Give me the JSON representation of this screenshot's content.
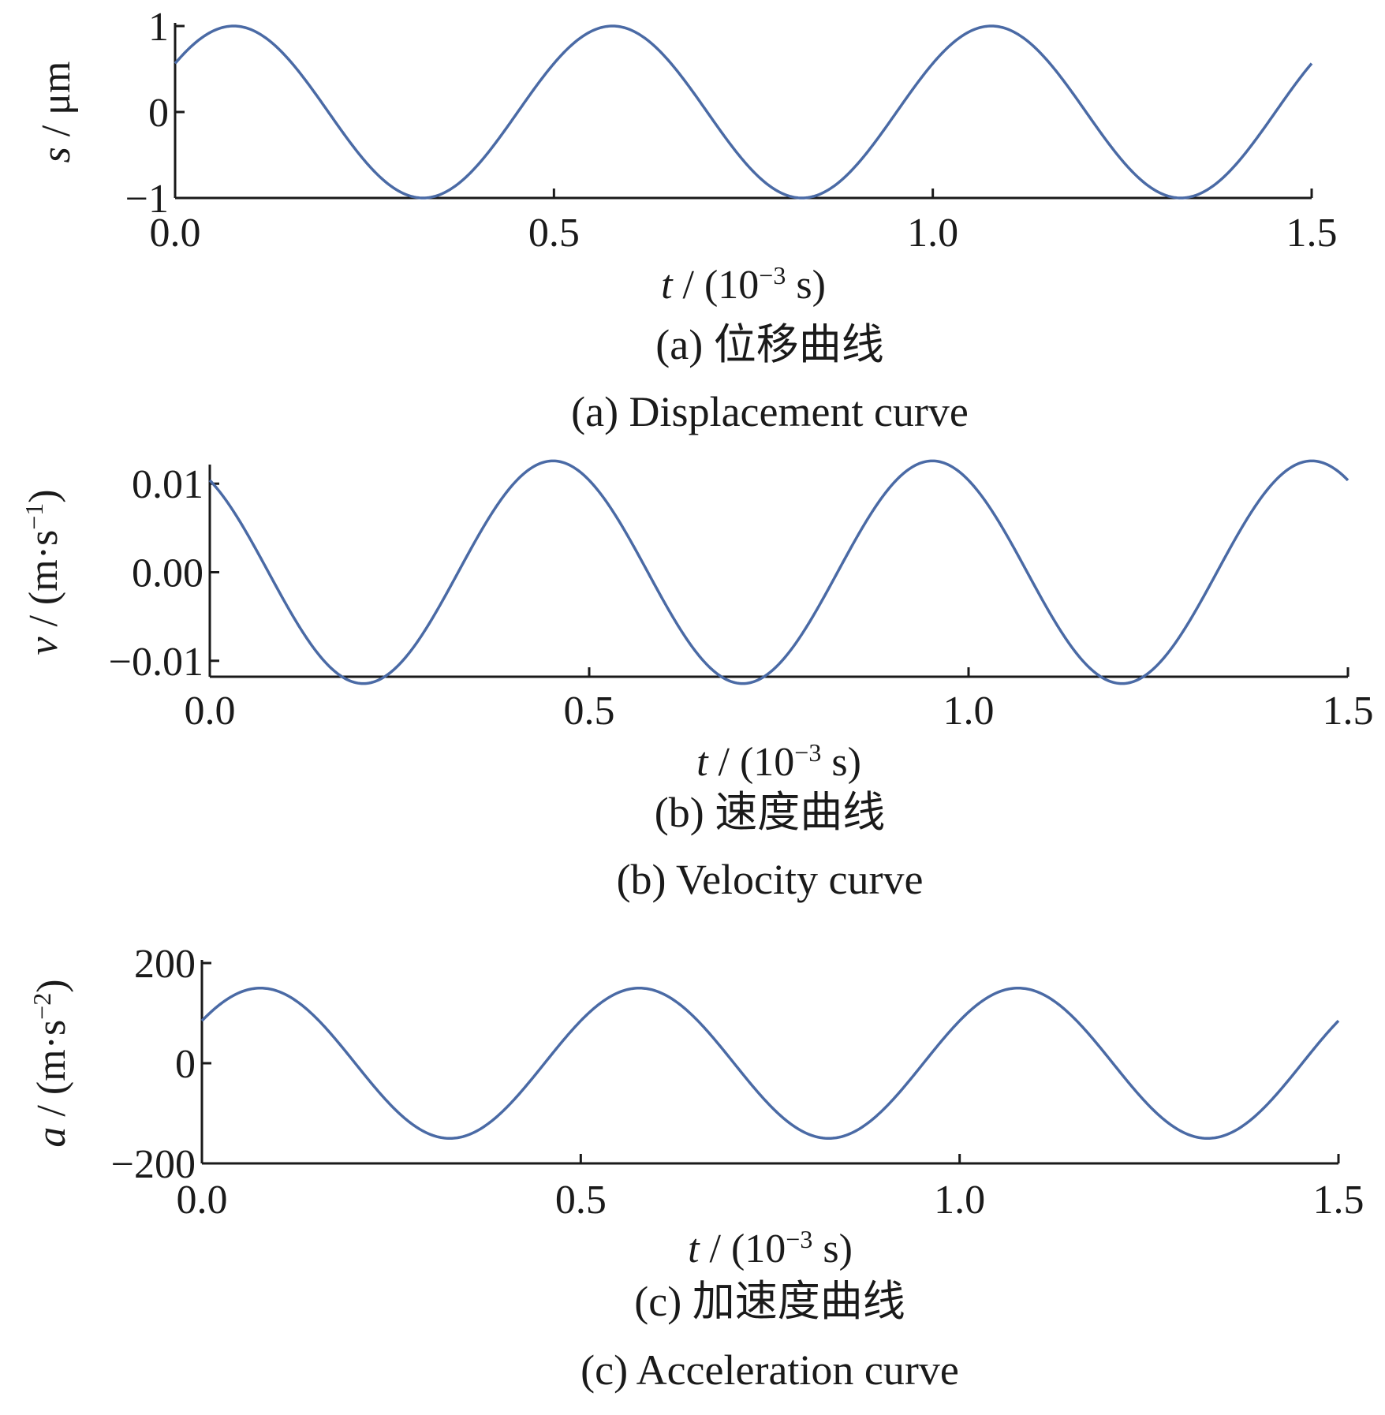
{
  "chart_data": [
    {
      "type": "line",
      "caption_cn": "(a) 位移曲线",
      "caption_en": "(a) Displacement curve",
      "ylabel_var": "s",
      "ylabel_unit": " / μm",
      "xlabel_var": "t",
      "xlabel_unit_pre": " / (10",
      "xlabel_unit_sup": "−3",
      "xlabel_unit_post": " s)",
      "xlim": [
        0,
        1.5
      ],
      "ylim": [
        -1,
        1
      ],
      "xticks": [
        0.0,
        0.5,
        1.0,
        1.5
      ],
      "xtick_labels": [
        "0.0",
        "0.5",
        "1.0",
        "1.5"
      ],
      "yticks": [
        -1,
        0,
        1
      ],
      "ytick_labels": [
        "−1",
        "0",
        "1"
      ],
      "grid": false,
      "series": [
        {
          "frequency_khz": 2,
          "amplitude": 1,
          "phase_rad": 0.6,
          "color": "#4a6aa5"
        }
      ]
    },
    {
      "type": "line",
      "caption_cn": "(b) 速度曲线",
      "caption_en": "(b) Velocity curve",
      "ylabel_var": "v",
      "ylabel_unit_pre": " / (m·s",
      "ylabel_unit_sup": "−1",
      "ylabel_unit_post": ")",
      "xlabel_var": "t",
      "xlabel_unit_pre": " / (10",
      "xlabel_unit_sup": "−3",
      "xlabel_unit_post": " s)",
      "xlim": [
        0,
        1.5
      ],
      "ylim": [
        -0.0118,
        0.0118
      ],
      "xticks": [
        0.0,
        0.5,
        1.0,
        1.5
      ],
      "xtick_labels": [
        "0.0",
        "0.5",
        "1.0",
        "1.5"
      ],
      "yticks": [
        -0.01,
        0.0,
        0.01
      ],
      "ytick_labels": [
        "−0.01",
        "0.00",
        "0.01"
      ],
      "grid": false,
      "series": [
        {
          "frequency_khz": 2,
          "amplitude": 0.01257,
          "phase_rad": 2.17,
          "color": "#4a6aa5"
        }
      ]
    },
    {
      "type": "line",
      "caption_cn": "(c) 加速度曲线",
      "caption_en": "(c) Acceleration curve",
      "ylabel_var": "a",
      "ylabel_unit_pre": " / (m·s",
      "ylabel_unit_sup": "−2",
      "ylabel_unit_post": ")",
      "xlabel_var": "t",
      "xlabel_unit_pre": " / (10",
      "xlabel_unit_sup": "−3",
      "xlabel_unit_post": " s)",
      "xlim": [
        0,
        1.5
      ],
      "ylim": [
        -200,
        200
      ],
      "xticks": [
        0.0,
        0.5,
        1.0,
        1.5
      ],
      "xtick_labels": [
        "0.0",
        "0.5",
        "1.0",
        "1.5"
      ],
      "yticks": [
        -200,
        0,
        200
      ],
      "ytick_labels": [
        "−200",
        "0",
        "200"
      ],
      "grid": false,
      "series": [
        {
          "frequency_khz": 2,
          "amplitude": 150,
          "phase_rad": 0.6,
          "color": "#4a6aa5"
        }
      ]
    }
  ]
}
